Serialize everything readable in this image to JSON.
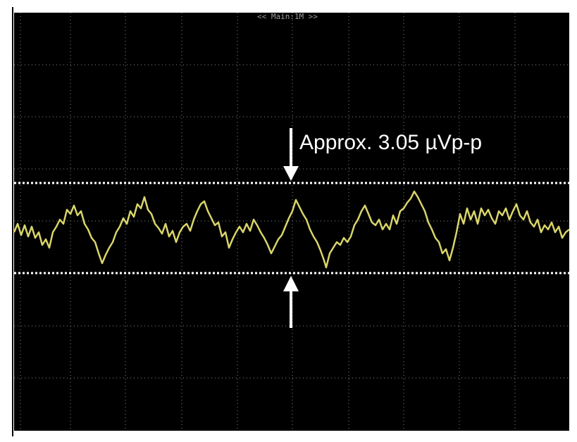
{
  "header": {
    "label": "<< Main:1M >>"
  },
  "annotation": {
    "text": "Approx. 3.05 µVp-p"
  }
}
